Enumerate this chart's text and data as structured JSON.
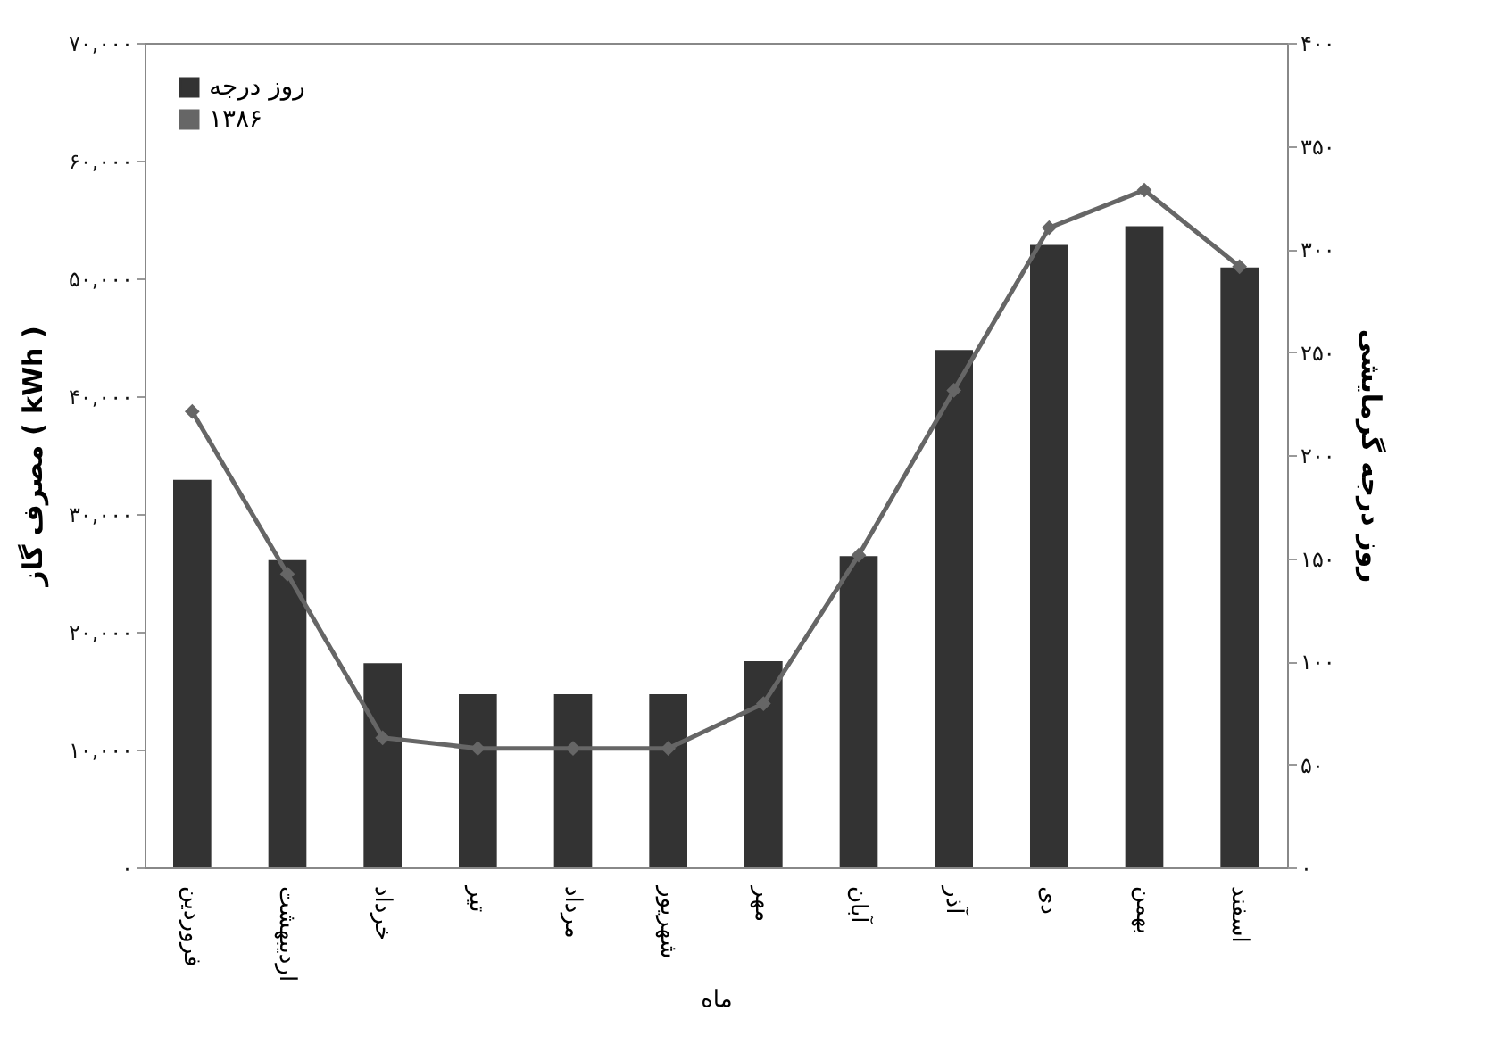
{
  "chart_data": {
    "type": "bar",
    "categories": [
      "فروردین",
      "اردیبهشت",
      "خرداد",
      "تیر",
      "مرداد",
      "شهریور",
      "مهر",
      "آبان",
      "آذر",
      "دی",
      "بهمن",
      "اسفند"
    ],
    "xlabel": "ماه",
    "ylabel": "مصرف گاز ( kWh )",
    "y2label": "روز درجه گرمایشی",
    "series": [
      {
        "name": "روز درجه",
        "axis": "y2",
        "color": "#333333",
        "values": [
          188,
          149,
          99,
          84,
          84,
          84,
          100,
          151,
          251,
          302,
          311,
          291
        ]
      },
      {
        "name": "۱۳۸۶",
        "type": "line",
        "axis": "y",
        "color": "#666666",
        "values": [
          38700,
          24900,
          11000,
          10100,
          10100,
          10100,
          13900,
          26500,
          40500,
          54300,
          57500,
          51000
        ]
      }
    ],
    "ylim": [
      0,
      70000
    ],
    "yticks": [
      {
        "value": 0,
        "label": "۰"
      },
      {
        "value": 10000,
        "label": "۱۰,۰۰۰"
      },
      {
        "value": 20000,
        "label": "۲۰,۰۰۰"
      },
      {
        "value": 30000,
        "label": "۳۰,۰۰۰"
      },
      {
        "value": 40000,
        "label": "۴۰,۰۰۰"
      },
      {
        "value": 50000,
        "label": "۵۰,۰۰۰"
      },
      {
        "value": 60000,
        "label": "۶۰,۰۰۰"
      },
      {
        "value": 70000,
        "label": "۷۰,۰۰۰"
      }
    ],
    "y2lim": [
      0,
      400
    ],
    "y2ticks": [
      {
        "value": 0,
        "label": "۰"
      },
      {
        "value": 50,
        "label": "۵۰"
      },
      {
        "value": 100,
        "label": "۱۰۰"
      },
      {
        "value": 150,
        "label": "۱۵۰"
      },
      {
        "value": 200,
        "label": "۲۰۰"
      },
      {
        "value": 250,
        "label": "۲۵۰"
      },
      {
        "value": 300,
        "label": "۳۰۰"
      },
      {
        "value": 350,
        "label": "۳۵۰"
      },
      {
        "value": 400,
        "label": "۴۰۰"
      }
    ],
    "marker": "diamond",
    "grid": false,
    "legend": "top left"
  }
}
